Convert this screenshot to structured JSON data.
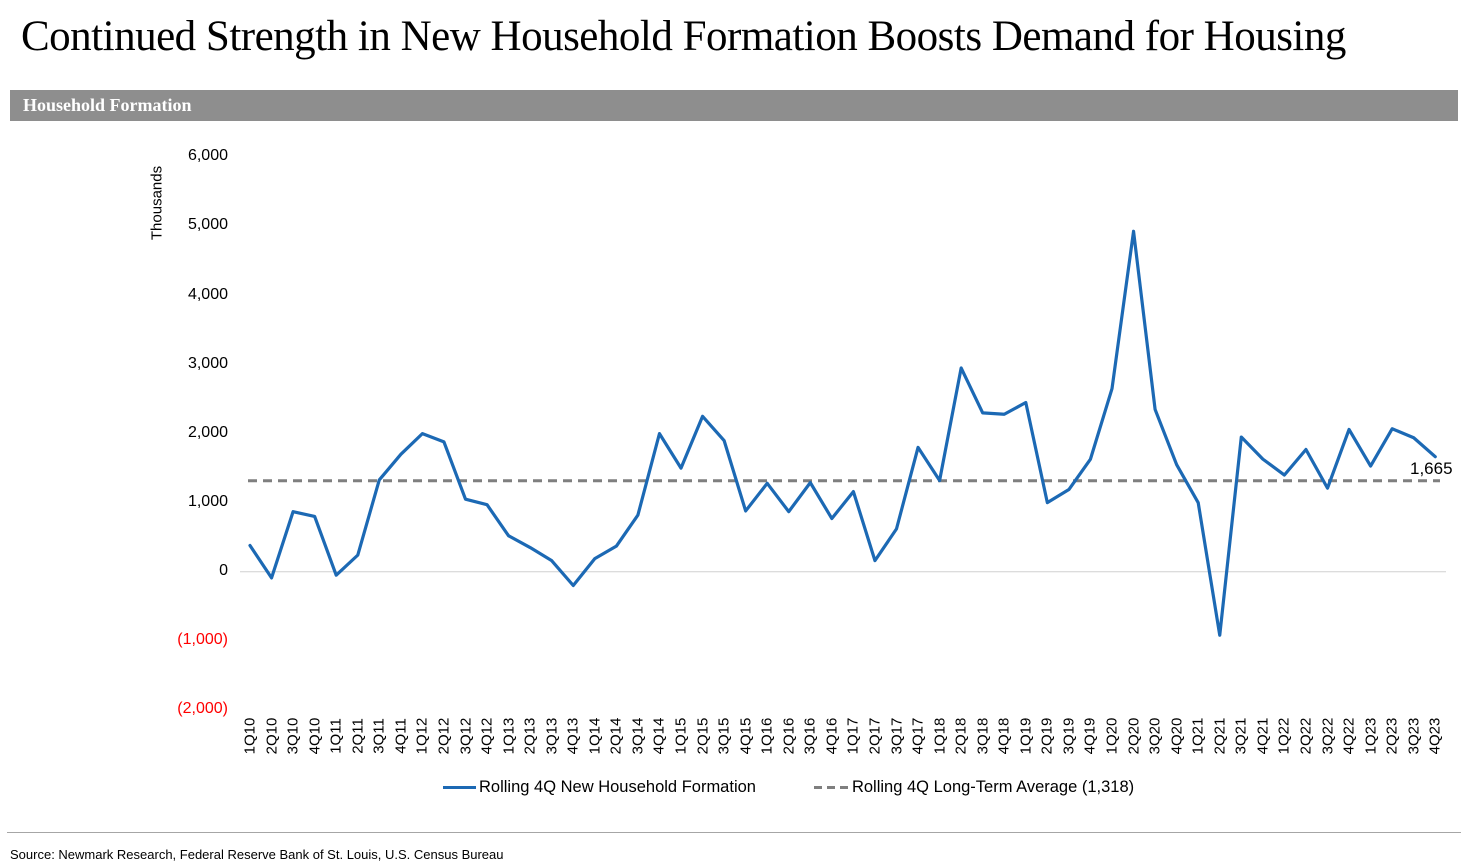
{
  "title": "Continued Strength in New Household Formation Boosts Demand for Housing",
  "section_header": "Household Formation",
  "source": "Source: Newmark Research, Federal Reserve Bank of St. Louis, U.S. Census Bureau",
  "colors": {
    "line_blue": "#1c69b4",
    "average_gray": "#7f7f7f",
    "zero_gridline": "#d0d0d0",
    "banner_gray": "#8e8e8e",
    "negative_tick_red": "#ff0000"
  },
  "chart_data": {
    "type": "line",
    "title": "Household Formation",
    "ylabel": "Thousands",
    "xlabel": "",
    "ylim": [
      -2000,
      6000
    ],
    "grid": "zero-line only",
    "legend_position": "bottom-center",
    "categories": [
      "1Q10",
      "2Q10",
      "3Q10",
      "4Q10",
      "1Q11",
      "2Q11",
      "3Q11",
      "4Q11",
      "1Q12",
      "2Q12",
      "3Q12",
      "4Q12",
      "1Q13",
      "2Q13",
      "3Q13",
      "4Q13",
      "1Q14",
      "2Q14",
      "3Q14",
      "4Q14",
      "1Q15",
      "2Q15",
      "3Q15",
      "4Q15",
      "1Q16",
      "2Q16",
      "3Q16",
      "4Q16",
      "1Q17",
      "2Q17",
      "3Q17",
      "4Q17",
      "1Q18",
      "2Q18",
      "3Q18",
      "4Q18",
      "1Q19",
      "2Q19",
      "3Q19",
      "4Q19",
      "1Q20",
      "2Q20",
      "3Q20",
      "4Q20",
      "1Q21",
      "2Q21",
      "3Q21",
      "4Q21",
      "1Q22",
      "2Q22",
      "3Q22",
      "4Q22",
      "1Q23",
      "2Q23",
      "3Q23",
      "4Q23"
    ],
    "series": [
      {
        "name": "Rolling 4Q New Household Formation",
        "values": [
          380,
          -90,
          870,
          800,
          -50,
          240,
          1330,
          1700,
          2000,
          1880,
          1050,
          970,
          520,
          350,
          160,
          -200,
          190,
          370,
          820,
          2000,
          1500,
          2250,
          1900,
          880,
          1280,
          870,
          1290,
          770,
          1160,
          160,
          620,
          1800,
          1320,
          2950,
          2300,
          2280,
          2450,
          1000,
          1190,
          1630,
          2650,
          4930,
          2350,
          1550,
          1000,
          -920,
          1950,
          1630,
          1400,
          1770,
          1210,
          2060,
          1530,
          2070,
          1940,
          1665
        ]
      }
    ],
    "average_value": 1318,
    "series_label": "Rolling 4Q New Household Formation",
    "average_label": "Rolling 4Q Long-Term Average (1,318)",
    "last_point_label": "1,665",
    "yticks": [
      {
        "value": 6000,
        "label": "6,000"
      },
      {
        "value": 5000,
        "label": "5,000"
      },
      {
        "value": 4000,
        "label": "4,000"
      },
      {
        "value": 3000,
        "label": "3,000"
      },
      {
        "value": 2000,
        "label": "2,000"
      },
      {
        "value": 1000,
        "label": "1,000"
      },
      {
        "value": 0,
        "label": "0"
      },
      {
        "value": -1000,
        "label": "(1,000)"
      },
      {
        "value": -2000,
        "label": "(2,000)"
      }
    ]
  }
}
